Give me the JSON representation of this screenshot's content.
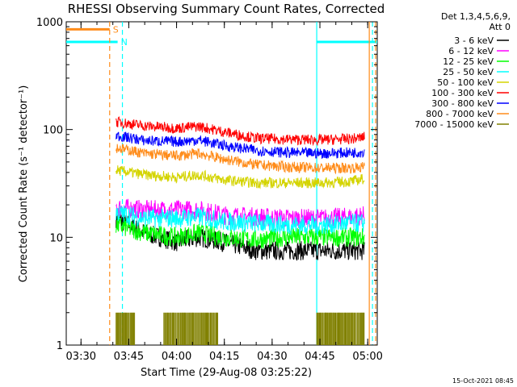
{
  "chart_data": {
    "type": "line",
    "title": "RHESSI Observing Summary Count Rates, Corrected",
    "xlabel": "Start Time (29-Aug-08 03:25:22)",
    "ylabel": "Corrected Count Rate (s⁻¹ detector⁻¹)",
    "y_scale": "log",
    "ylim": [
      1,
      1000
    ],
    "xlim": [
      "03:25:22",
      "05:03:00"
    ],
    "x_ticks": [
      "03:30",
      "03:45",
      "04:00",
      "04:15",
      "04:30",
      "04:45",
      "05:00"
    ],
    "y_ticks": [
      "1",
      "10",
      "100",
      "1000"
    ],
    "legend_header": [
      "Det 1,3,4,5,6,9,",
      "Att 0"
    ],
    "legend_position": "right",
    "footer": "15-Oct-2021 08:45",
    "flags": [
      {
        "label": "S",
        "color": "#ff8c1a",
        "y": 850,
        "start": "03:25:22",
        "end": "03:39:00"
      },
      {
        "label": "N",
        "color": "#00ffff",
        "y": 650,
        "start": "03:25:22",
        "end": "03:41:30"
      },
      {
        "label": "",
        "color": "#00ffff",
        "y": 650,
        "start": "04:44:00",
        "end": "05:03:00"
      }
    ],
    "vlines": [
      {
        "time": "03:39:00",
        "color": "#ff8c1a",
        "style": "dashed"
      },
      {
        "time": "03:43:00",
        "color": "#00ffff",
        "style": "dashed"
      },
      {
        "time": "04:44:00",
        "color": "#00ffff",
        "style": "solid"
      },
      {
        "time": "05:00:30",
        "color": "#ff8c1a",
        "style": "solid"
      },
      {
        "time": "05:01:30",
        "color": "#00ffff",
        "style": "dashed"
      },
      {
        "time": "05:02:30",
        "color": "#ff8c1a",
        "style": "dashed"
      }
    ],
    "time_axis": [
      "03:41:00",
      "03:50:00",
      "04:00:00",
      "04:07:00",
      "04:15:00",
      "04:25:00",
      "04:35:00",
      "04:45:00",
      "04:55:00",
      "04:59:00"
    ],
    "series": [
      {
        "name": "3 - 6 keV",
        "color": "#000000",
        "values": [
          15,
          11,
          9,
          10,
          9,
          7.5,
          7.5,
          7.5,
          7.5,
          7.5
        ]
      },
      {
        "name": "6 - 12 keV",
        "color": "#ff00ff",
        "values": [
          19,
          18,
          18,
          18,
          16,
          15.5,
          15,
          15,
          15.5,
          16
        ]
      },
      {
        "name": "12 - 25 keV",
        "color": "#00ff00",
        "values": [
          13,
          11,
          10,
          11,
          10,
          9.5,
          10,
          10,
          10,
          10
        ]
      },
      {
        "name": "25 - 50 keV",
        "color": "#00ffff",
        "values": [
          17,
          15,
          15,
          15.5,
          14,
          13.5,
          13,
          13,
          13.5,
          13.5
        ]
      },
      {
        "name": "50 - 100 keV",
        "color": "#d4d400",
        "values": [
          42,
          38,
          36,
          38,
          34,
          32,
          32,
          32,
          33,
          35
        ]
      },
      {
        "name": "100 - 300 keV",
        "color": "#ff0000",
        "values": [
          118,
          108,
          103,
          107,
          95,
          83,
          81,
          80,
          82,
          85
        ]
      },
      {
        "name": "300 - 800 keV",
        "color": "#0000ff",
        "values": [
          88,
          79,
          77,
          80,
          71,
          64,
          61,
          60,
          61,
          62
        ]
      },
      {
        "name": "800 - 7000 keV",
        "color": "#ff8c1a",
        "values": [
          68,
          60,
          57,
          60,
          53,
          47,
          45,
          44,
          44,
          45
        ]
      },
      {
        "name": "7000 - 15000 keV",
        "color": "#808000",
        "values": [
          1,
          1,
          1,
          1,
          1,
          1,
          1,
          1,
          1,
          1
        ]
      }
    ],
    "brown_spike_intervals": [
      [
        "03:41:00",
        "03:47:00"
      ],
      [
        "03:56:00",
        "04:13:00"
      ],
      [
        "04:44:00",
        "04:59:00"
      ]
    ],
    "brown_spike_height": 2
  }
}
